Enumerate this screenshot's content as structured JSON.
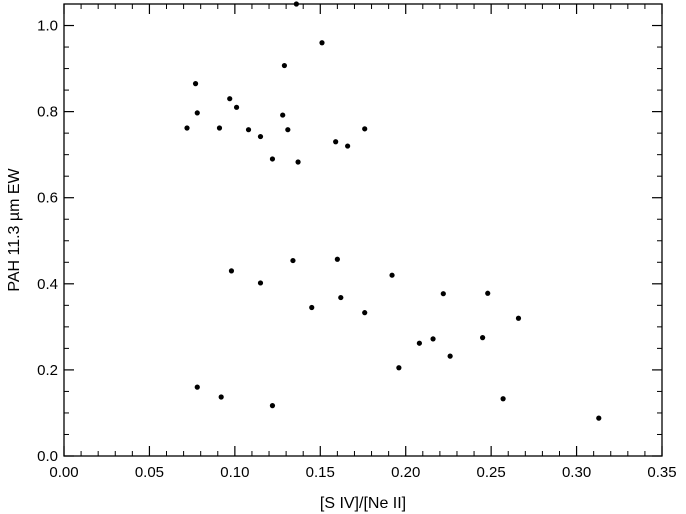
{
  "chart_data": {
    "type": "scatter",
    "title": "",
    "xlabel": "[S IV]/[Ne II]",
    "ylabel": "PAH 11.3 µm EW",
    "xlim": [
      0.0,
      0.35
    ],
    "ylim": [
      0.0,
      1.05
    ],
    "grid": false,
    "x_ticks": [
      "0.00",
      "0.05",
      "0.10",
      "0.15",
      "0.20",
      "0.25",
      "0.30",
      "0.35"
    ],
    "y_ticks": [
      "0.0",
      "0.2",
      "0.4",
      "0.6",
      "0.8",
      "1.0"
    ],
    "point_color": "#000000",
    "points": [
      {
        "x": 0.136,
        "y": 1.05
      },
      {
        "x": 0.151,
        "y": 0.96
      },
      {
        "x": 0.129,
        "y": 0.907
      },
      {
        "x": 0.077,
        "y": 0.865
      },
      {
        "x": 0.097,
        "y": 0.83
      },
      {
        "x": 0.101,
        "y": 0.81
      },
      {
        "x": 0.078,
        "y": 0.797
      },
      {
        "x": 0.128,
        "y": 0.792
      },
      {
        "x": 0.072,
        "y": 0.762
      },
      {
        "x": 0.091,
        "y": 0.762
      },
      {
        "x": 0.108,
        "y": 0.758
      },
      {
        "x": 0.131,
        "y": 0.758
      },
      {
        "x": 0.176,
        "y": 0.76
      },
      {
        "x": 0.115,
        "y": 0.742
      },
      {
        "x": 0.159,
        "y": 0.73
      },
      {
        "x": 0.166,
        "y": 0.72
      },
      {
        "x": 0.122,
        "y": 0.69
      },
      {
        "x": 0.137,
        "y": 0.683
      },
      {
        "x": 0.16,
        "y": 0.457
      },
      {
        "x": 0.134,
        "y": 0.454
      },
      {
        "x": 0.098,
        "y": 0.43
      },
      {
        "x": 0.192,
        "y": 0.42
      },
      {
        "x": 0.115,
        "y": 0.402
      },
      {
        "x": 0.222,
        "y": 0.377
      },
      {
        "x": 0.248,
        "y": 0.378
      },
      {
        "x": 0.162,
        "y": 0.368
      },
      {
        "x": 0.145,
        "y": 0.345
      },
      {
        "x": 0.176,
        "y": 0.333
      },
      {
        "x": 0.266,
        "y": 0.32
      },
      {
        "x": 0.216,
        "y": 0.272
      },
      {
        "x": 0.245,
        "y": 0.275
      },
      {
        "x": 0.208,
        "y": 0.262
      },
      {
        "x": 0.226,
        "y": 0.232
      },
      {
        "x": 0.196,
        "y": 0.205
      },
      {
        "x": 0.078,
        "y": 0.16
      },
      {
        "x": 0.092,
        "y": 0.137
      },
      {
        "x": 0.257,
        "y": 0.133
      },
      {
        "x": 0.122,
        "y": 0.117
      },
      {
        "x": 0.313,
        "y": 0.088
      }
    ]
  }
}
